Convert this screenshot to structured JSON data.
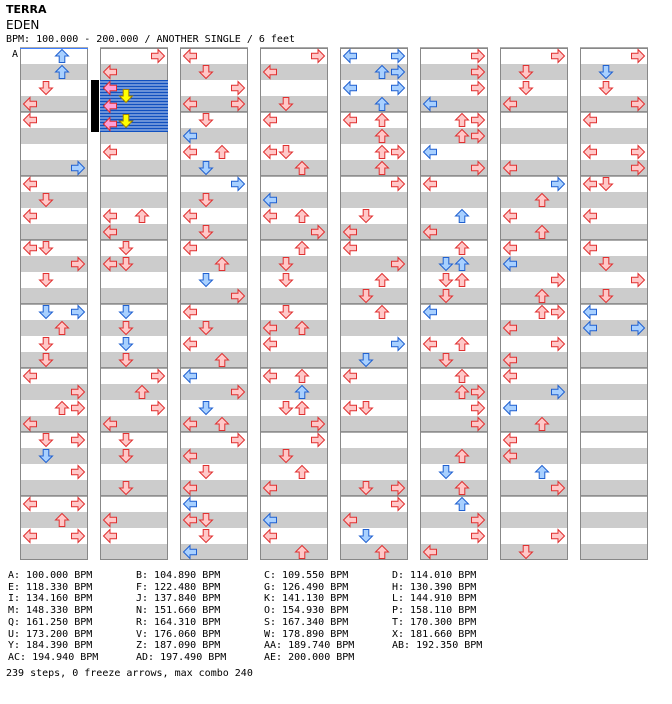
{
  "artist": "TERRA",
  "title": "EDEN",
  "bpm_line": "BPM: 100.000 - 200.000 / ANOTHER SINGLE / 6 feet",
  "marker_label": "A",
  "colors": {
    "stripe": "#cccccc",
    "border": "#888888",
    "arrow_red_fill": "#ffc8c8",
    "arrow_red_stroke": "#e03030",
    "arrow_blue_fill": "#a8d0ff",
    "arrow_blue_stroke": "#2060d0",
    "arrow_pink_fill": "#ffa0d8",
    "arrow_yellow_fill": "#ffff00",
    "highlight_blue": "#1050c0",
    "marker_line": "#4080ff"
  },
  "icons": {
    "note": "step-arrow-icon"
  },
  "bpm_table": [
    [
      "A: 100.000 BPM",
      "B: 104.890 BPM",
      "C: 109.550 BPM",
      "D: 114.010 BPM"
    ],
    [
      "E: 118.330 BPM",
      "F: 122.480 BPM",
      "G: 126.490 BPM",
      "H: 130.390 BPM"
    ],
    [
      "I: 134.160 BPM",
      "J: 137.840 BPM",
      "K: 141.130 BPM",
      "L: 144.910 BPM"
    ],
    [
      "M: 148.330 BPM",
      "N: 151.660 BPM",
      "O: 154.930 BPM",
      "P: 158.110 BPM"
    ],
    [
      "Q: 161.250 BPM",
      "R: 164.310 BPM",
      "S: 167.340 BPM",
      "T: 170.300 BPM"
    ],
    [
      "U: 173.200 BPM",
      "V: 176.060 BPM",
      "W: 178.890 BPM",
      "X: 181.660 BPM"
    ],
    [
      "Y: 184.390 BPM",
      "Z: 187.090 BPM",
      "AA: 189.740 BPM",
      "AB: 192.350 BPM"
    ],
    [
      "AC: 194.940 BPM",
      "AD: 197.490 BPM",
      "AE: 200.000 BPM",
      ""
    ]
  ],
  "summary": "239 steps, 0 freeze arrows, max combo 240"
}
